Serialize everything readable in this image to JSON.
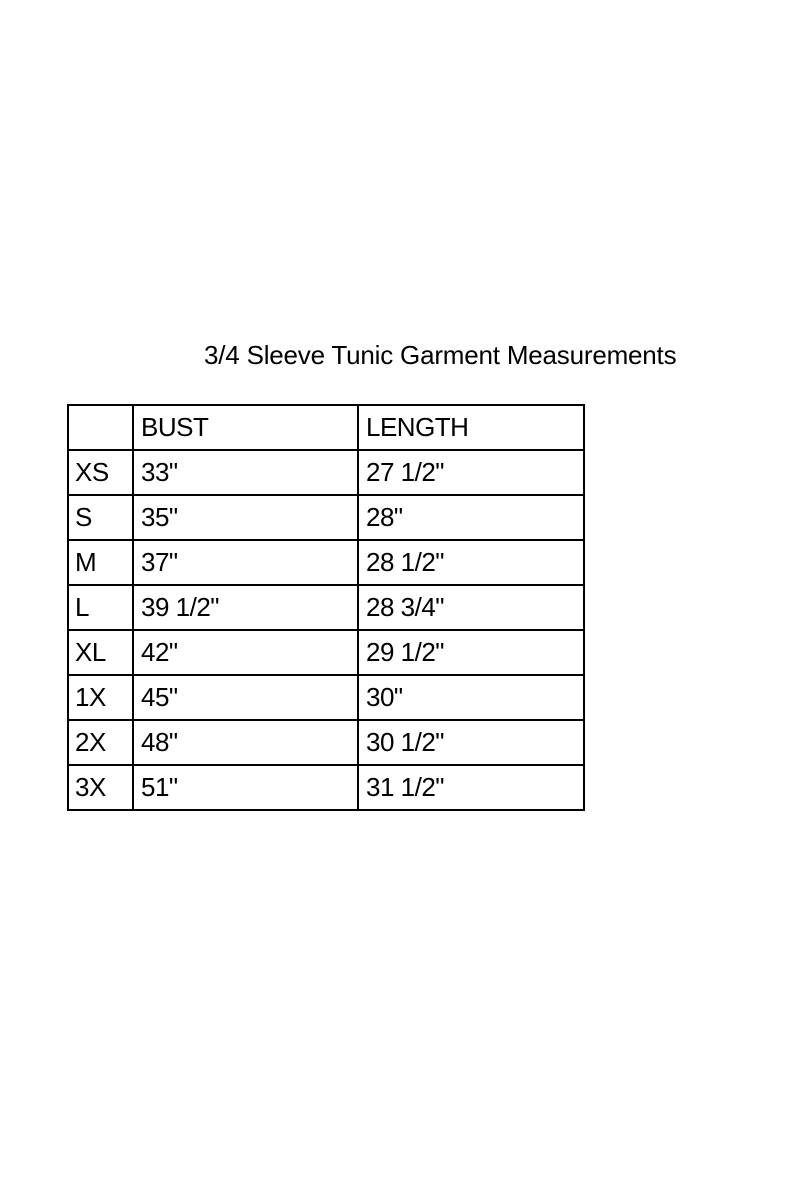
{
  "title": "3/4 Sleeve Tunic Garment Measurements",
  "table": {
    "headers": [
      "",
      "BUST",
      "LENGTH"
    ],
    "rows": [
      [
        "XS",
        "33\"",
        "27 1/2\""
      ],
      [
        "S",
        "35\"",
        "28\""
      ],
      [
        "M",
        "37\"",
        "28 1/2\""
      ],
      [
        "L",
        "39 1/2\"",
        "28 3/4\""
      ],
      [
        "XL",
        "42\"",
        "29 1/2\""
      ],
      [
        "1X",
        "45\"",
        "30\""
      ],
      [
        "2X",
        "48\"",
        "30 1/2\""
      ],
      [
        "3X",
        "51\"",
        "31 1/2\""
      ]
    ]
  }
}
